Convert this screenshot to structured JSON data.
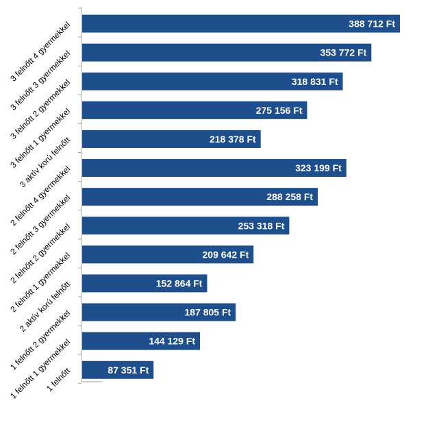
{
  "chart_data": {
    "type": "bar",
    "orientation": "horizontal",
    "title": "",
    "xlabel": "",
    "ylabel": "",
    "categories": [
      "3 felnőtt 4 gyermekkel",
      "3 felnőtt 3 gyermekkel",
      "3 felnőtt 2 gyermekkel",
      "3 felnőtt 1 gyermekkel",
      "3 aktív korú felnőtt",
      "2 felnőtt 4 gyermekkel",
      "2 felnőtt 3 gyermekkel",
      "2 felnőtt 2 gyermekkel",
      "2 felnőtt 1 gyermekkel",
      "2 aktív korú felnőtt",
      "1 felnőtt 2 gyermekkel",
      "1 felnőtt 1 gyermekkel",
      "1 felnőtt"
    ],
    "values": [
      388712,
      353772,
      318831,
      275156,
      218378,
      323199,
      288258,
      253318,
      209642,
      152864,
      187805,
      144129,
      87351
    ],
    "data_labels": [
      "388 712 Ft",
      "353 772 Ft",
      "318 831 Ft",
      "275 156 Ft",
      "218 378 Ft",
      "323 199 Ft",
      "288 258 Ft",
      "253 318 Ft",
      "209 642 Ft",
      "152 864 Ft",
      "187 805 Ft",
      "144 129 Ft",
      "87 351 Ft"
    ],
    "xlim": [
      0,
      420000
    ],
    "grid": false,
    "legend": "none",
    "bar_color": "#1f4e8c"
  }
}
